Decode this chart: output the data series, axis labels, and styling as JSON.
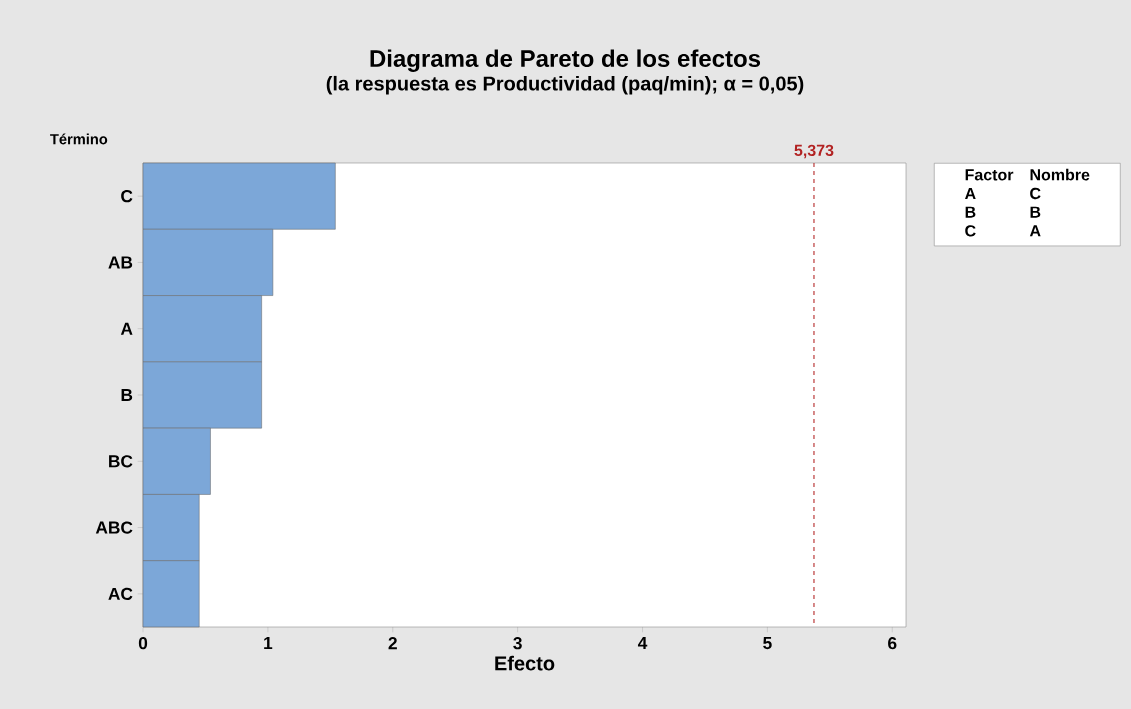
{
  "chart_data": {
    "type": "bar",
    "orientation": "horizontal",
    "title": "Diagrama de Pareto de los efectos",
    "subtitle": "(la respuesta es Productividad (paq/min); α = 0,05)",
    "xlabel": "Efecto",
    "ylabel": "Término",
    "categories": [
      "C",
      "AB",
      "A",
      "B",
      "BC",
      "ABC",
      "AC"
    ],
    "values": [
      1.54,
      1.04,
      0.95,
      0.95,
      0.54,
      0.45,
      0.45
    ],
    "color": "#7ca7d8",
    "xlim": [
      0,
      6.11
    ],
    "xticks": [
      0,
      1,
      2,
      3,
      4,
      5,
      6
    ],
    "ref_lines": [
      {
        "axis": "x",
        "value": 5.373,
        "label": "5,373",
        "color": "#b22222",
        "line_style": "dashed"
      }
    ],
    "annotations": [
      "Factor",
      "Nombre",
      "A",
      "C",
      "B",
      "B",
      "C",
      "A"
    ],
    "grid": false
  }
}
